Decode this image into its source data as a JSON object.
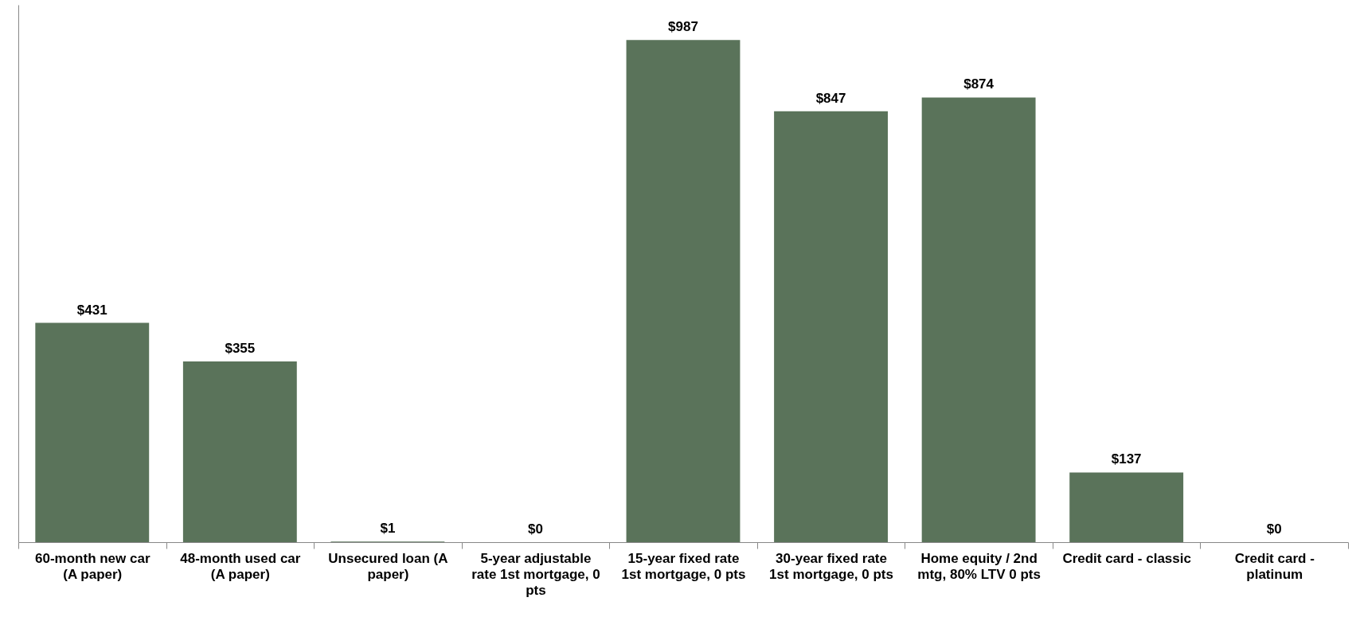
{
  "chart_data": {
    "type": "bar",
    "categories": [
      "60-month new car (A paper)",
      "48-month used car (A paper)",
      "Unsecured loan (A paper)",
      "5-year adjustable rate 1st mortgage, 0 pts",
      "15-year fixed rate 1st mortgage, 0 pts",
      "30-year fixed rate 1st mortgage, 0 pts",
      "Home equity / 2nd mtg, 80% LTV 0 pts",
      "Credit card - classic",
      "Credit card - platinum"
    ],
    "values": [
      431,
      355,
      1,
      0,
      987,
      847,
      874,
      137,
      0
    ],
    "value_labels": [
      "$431",
      "$355",
      "$1",
      "$0",
      "$987",
      "$847",
      "$874",
      "$137",
      "$0"
    ],
    "color": "#5a735a",
    "grid": false
  }
}
